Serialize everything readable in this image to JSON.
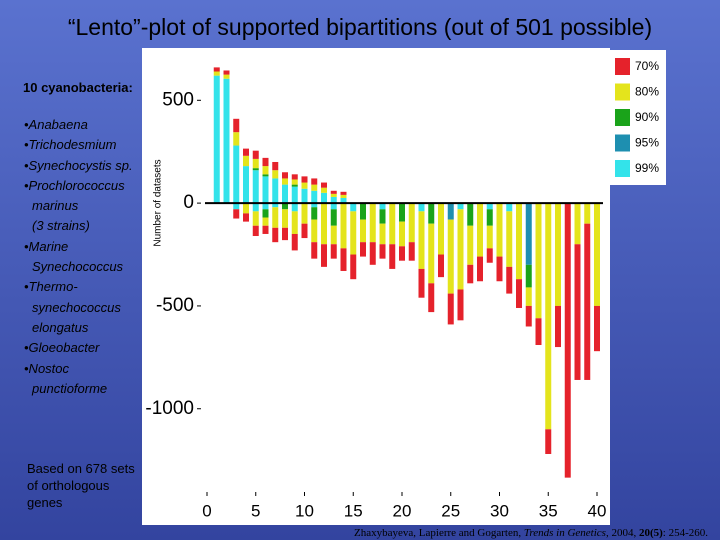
{
  "title": "“Lento”-plot of supported bipartitions (out of 501 possible)",
  "heading": "10 cyanobacteria:",
  "items": [
    [
      "•Anabaena"
    ],
    [
      "•Trichodesmium"
    ],
    [
      "•Synechocystis sp."
    ],
    [
      "•Prochlorococcus",
      "marinus",
      "(3 strains)"
    ],
    [
      "•Marine",
      "Synechococcus"
    ],
    [
      "•Thermo-",
      "synechococcus",
      "elongatus"
    ],
    [
      "•Gloeobacter"
    ],
    [
      "•Nostoc",
      "punctioforme"
    ]
  ],
  "note": "Based on 678 sets of orthologous genes",
  "citation": {
    "authors": "Zhaxybayeva, Lapierre and Gogarten,",
    "journal": "Trends in Genetics",
    "year": ", 2004,",
    "volume": "20(5)",
    "pages": ": 254-260."
  },
  "chart_data": {
    "type": "stacked_bar",
    "y_label": "Number of datasets",
    "x": [
      1,
      2,
      3,
      4,
      5,
      6,
      7,
      8,
      9,
      10,
      11,
      12,
      13,
      14,
      15,
      16,
      17,
      18,
      19,
      20,
      21,
      22,
      23,
      24,
      25,
      26,
      27,
      28,
      29,
      30,
      31,
      32,
      33,
      34,
      35,
      36,
      37,
      38,
      39,
      40
    ],
    "xlim": [
      -1,
      41
    ],
    "xticks": [
      0,
      5,
      10,
      15,
      20,
      25,
      30,
      35,
      40
    ],
    "ylim": [
      -1400,
      730
    ],
    "yticks": [
      500,
      0,
      -500,
      -1000
    ],
    "legend": "right",
    "series": [
      {
        "name": "70%",
        "color": "#e5222b",
        "values": [
          20,
          20,
          65,
          35,
          40,
          40,
          40,
          30,
          25,
          30,
          30,
          25,
          15,
          15,
          0,
          0,
          0,
          0,
          0,
          0,
          0,
          0,
          0,
          0,
          0,
          0,
          0,
          0,
          0,
          0,
          0,
          0,
          0,
          0,
          0,
          0,
          0,
          0,
          0,
          0
        ],
        "negative_values": [
          0,
          0,
          -45,
          -40,
          -50,
          -40,
          -70,
          -60,
          -80,
          -70,
          -80,
          -110,
          -70,
          -110,
          -120,
          -70,
          -110,
          -70,
          -120,
          -70,
          -90,
          -140,
          -140,
          -110,
          -150,
          -150,
          -90,
          -120,
          -70,
          -120,
          -130,
          -140,
          -100,
          -130,
          -120,
          -200,
          -1335,
          -660,
          -760,
          -220
        ]
      },
      {
        "name": "80%",
        "color": "#e4e41c",
        "values": [
          20,
          20,
          65,
          50,
          45,
          40,
          40,
          30,
          25,
          30,
          30,
          25,
          15,
          15,
          0,
          0,
          0,
          0,
          0,
          0,
          0,
          0,
          0,
          0,
          0,
          0,
          0,
          0,
          0,
          0,
          0,
          0,
          0,
          0,
          0,
          0,
          0,
          0,
          0,
          0
        ],
        "negative_values": [
          0,
          0,
          0,
          -50,
          -70,
          -40,
          -100,
          -90,
          -110,
          -100,
          -110,
          -200,
          -90,
          -220,
          -210,
          -110,
          -190,
          -100,
          -200,
          -120,
          -190,
          -280,
          -290,
          -250,
          -360,
          -390,
          -190,
          -260,
          -110,
          -260,
          -270,
          -370,
          -90,
          -560,
          -1100,
          -500,
          0,
          -200,
          -100,
          -500
        ]
      },
      {
        "name": "90%",
        "color": "#1aa31a",
        "values": [
          0,
          0,
          0,
          0,
          10,
          10,
          0,
          0,
          10,
          0,
          0,
          0,
          0,
          0,
          0,
          0,
          0,
          0,
          0,
          0,
          0,
          0,
          0,
          0,
          0,
          0,
          0,
          0,
          0,
          0,
          0,
          0,
          0,
          0,
          0,
          0,
          0,
          0,
          0,
          0
        ],
        "negative_values": [
          0,
          0,
          0,
          0,
          0,
          -40,
          0,
          -30,
          0,
          0,
          -60,
          0,
          -80,
          0,
          0,
          -80,
          0,
          -70,
          0,
          -90,
          0,
          0,
          -100,
          0,
          0,
          0,
          -110,
          0,
          -80,
          0,
          0,
          0,
          -110,
          0,
          0,
          0,
          0,
          0,
          0,
          0
        ]
      },
      {
        "name": "95%",
        "color": "#1e8fb0",
        "values": [
          0,
          0,
          0,
          0,
          0,
          0,
          0,
          0,
          0,
          0,
          0,
          0,
          0,
          0,
          0,
          0,
          0,
          0,
          0,
          0,
          0,
          0,
          0,
          0,
          0,
          0,
          0,
          0,
          0,
          0,
          0,
          0,
          0,
          0,
          0,
          0,
          0,
          0,
          0,
          0
        ],
        "negative_values": [
          0,
          0,
          0,
          0,
          0,
          0,
          0,
          0,
          0,
          0,
          0,
          0,
          0,
          0,
          0,
          0,
          0,
          0,
          0,
          0,
          0,
          0,
          0,
          0,
          -80,
          0,
          0,
          0,
          0,
          0,
          0,
          0,
          -300,
          0,
          0,
          0,
          0,
          0,
          0,
          0
        ]
      },
      {
        "name": "99%",
        "color": "#33e3ea",
        "values": [
          620,
          605,
          280,
          180,
          160,
          130,
          120,
          90,
          80,
          70,
          60,
          50,
          30,
          25,
          0,
          0,
          0,
          0,
          0,
          0,
          0,
          0,
          0,
          0,
          0,
          0,
          0,
          0,
          0,
          0,
          0,
          0,
          0,
          0,
          0,
          0,
          0,
          0,
          0,
          0
        ],
        "negative_values": [
          0,
          0,
          -30,
          0,
          -40,
          -30,
          -20,
          0,
          -40,
          0,
          -20,
          0,
          -30,
          0,
          -40,
          0,
          0,
          -30,
          0,
          0,
          0,
          -40,
          0,
          0,
          0,
          -30,
          0,
          0,
          -30,
          0,
          -40,
          0,
          0,
          0,
          0,
          0,
          0,
          0,
          0,
          0
        ]
      }
    ]
  }
}
